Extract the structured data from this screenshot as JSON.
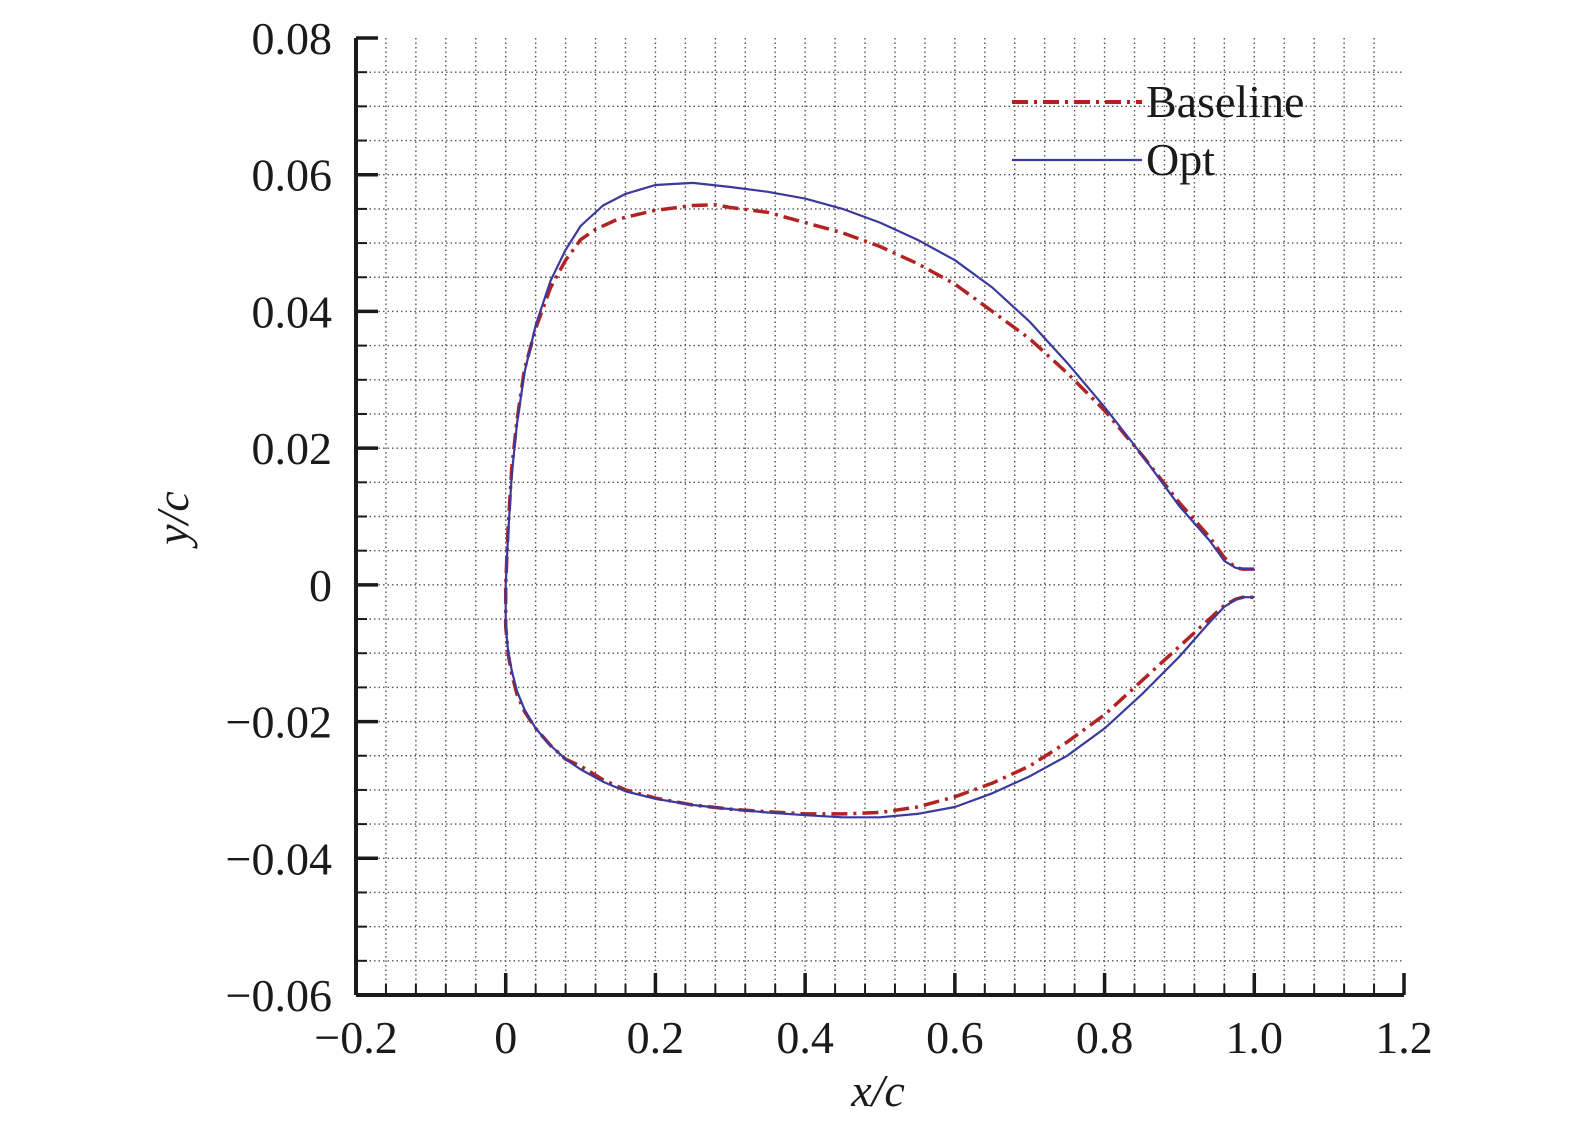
{
  "chart_data": {
    "type": "line",
    "title": "",
    "xlabel": "x/c",
    "ylabel": "y/c",
    "xlim": [
      -0.2,
      1.2
    ],
    "ylim": [
      -0.06,
      0.08
    ],
    "x_ticks": [
      -0.2,
      0,
      0.2,
      0.4,
      0.6,
      0.8,
      1.0,
      1.2
    ],
    "x_tick_labels": [
      "−0.2",
      "0",
      "0.2",
      "0.4",
      "0.6",
      "0.8",
      "1.0",
      "1.2"
    ],
    "y_ticks": [
      -0.06,
      -0.04,
      -0.02,
      0,
      0.02,
      0.04,
      0.06,
      0.08
    ],
    "y_tick_labels": [
      "−0.06",
      "−0.04",
      "−0.02",
      "0",
      "0.02",
      "0.04",
      "0.06",
      "0.08"
    ],
    "minor_x_step": 0.04,
    "minor_y_step": 0.005,
    "grid": true,
    "grid_style": "dotted",
    "legend_position": "top-right",
    "series": [
      {
        "name": "Baseline",
        "color": "#b22222",
        "style": "dash-dot",
        "x": [
          1.0,
          0.985,
          0.975,
          0.96,
          0.94,
          0.9,
          0.85,
          0.8,
          0.75,
          0.7,
          0.65,
          0.6,
          0.55,
          0.5,
          0.45,
          0.4,
          0.35,
          0.3,
          0.28,
          0.25,
          0.2,
          0.15,
          0.12,
          0.1,
          0.08,
          0.06,
          0.04,
          0.025,
          0.015,
          0.008,
          0.003,
          0.0,
          0.0,
          0.003,
          0.008,
          0.015,
          0.025,
          0.04,
          0.06,
          0.08,
          0.1,
          0.13,
          0.16,
          0.2,
          0.25,
          0.3,
          0.35,
          0.4,
          0.45,
          0.5,
          0.55,
          0.6,
          0.65,
          0.7,
          0.75,
          0.8,
          0.85,
          0.9,
          0.94,
          0.96,
          0.975,
          0.985,
          1.0
        ],
        "y": [
          0.0023,
          0.0023,
          0.0025,
          0.004,
          0.007,
          0.012,
          0.019,
          0.0255,
          0.031,
          0.036,
          0.04,
          0.044,
          0.047,
          0.0495,
          0.0515,
          0.053,
          0.0545,
          0.0552,
          0.0556,
          0.0555,
          0.0548,
          0.0535,
          0.052,
          0.0505,
          0.0475,
          0.0435,
          0.0375,
          0.0315,
          0.024,
          0.017,
          0.008,
          0.0,
          -0.006,
          -0.01,
          -0.013,
          -0.016,
          -0.0185,
          -0.021,
          -0.0235,
          -0.0255,
          -0.0265,
          -0.0285,
          -0.03,
          -0.0312,
          -0.0322,
          -0.0328,
          -0.0332,
          -0.0335,
          -0.0335,
          -0.0333,
          -0.0325,
          -0.031,
          -0.029,
          -0.0265,
          -0.023,
          -0.019,
          -0.014,
          -0.009,
          -0.005,
          -0.003,
          -0.0021,
          -0.0018,
          -0.0018
        ]
      },
      {
        "name": "Opt",
        "color": "#3a3a9e",
        "style": "solid",
        "x": [
          1.0,
          0.985,
          0.975,
          0.96,
          0.94,
          0.9,
          0.85,
          0.8,
          0.75,
          0.7,
          0.65,
          0.6,
          0.55,
          0.5,
          0.45,
          0.4,
          0.35,
          0.3,
          0.25,
          0.2,
          0.16,
          0.13,
          0.1,
          0.08,
          0.06,
          0.04,
          0.025,
          0.015,
          0.008,
          0.003,
          0.0,
          0.0,
          0.003,
          0.008,
          0.015,
          0.025,
          0.04,
          0.06,
          0.08,
          0.1,
          0.13,
          0.16,
          0.2,
          0.25,
          0.3,
          0.35,
          0.4,
          0.45,
          0.5,
          0.55,
          0.6,
          0.65,
          0.7,
          0.75,
          0.8,
          0.85,
          0.9,
          0.94,
          0.96,
          0.975,
          0.985,
          1.0
        ],
        "y": [
          0.0023,
          0.0023,
          0.0025,
          0.0035,
          0.0065,
          0.0115,
          0.019,
          0.026,
          0.0325,
          0.0385,
          0.0435,
          0.0475,
          0.0505,
          0.053,
          0.055,
          0.0565,
          0.0575,
          0.0582,
          0.0588,
          0.0585,
          0.0572,
          0.0555,
          0.0525,
          0.049,
          0.0445,
          0.038,
          0.031,
          0.0235,
          0.016,
          0.007,
          0.0,
          -0.006,
          -0.0095,
          -0.0125,
          -0.0155,
          -0.0182,
          -0.021,
          -0.0235,
          -0.0255,
          -0.027,
          -0.0288,
          -0.0302,
          -0.0313,
          -0.0322,
          -0.0328,
          -0.0333,
          -0.0337,
          -0.034,
          -0.034,
          -0.0335,
          -0.0325,
          -0.0305,
          -0.028,
          -0.025,
          -0.021,
          -0.016,
          -0.0105,
          -0.0055,
          -0.0032,
          -0.0022,
          -0.0018,
          -0.0018
        ]
      }
    ]
  }
}
